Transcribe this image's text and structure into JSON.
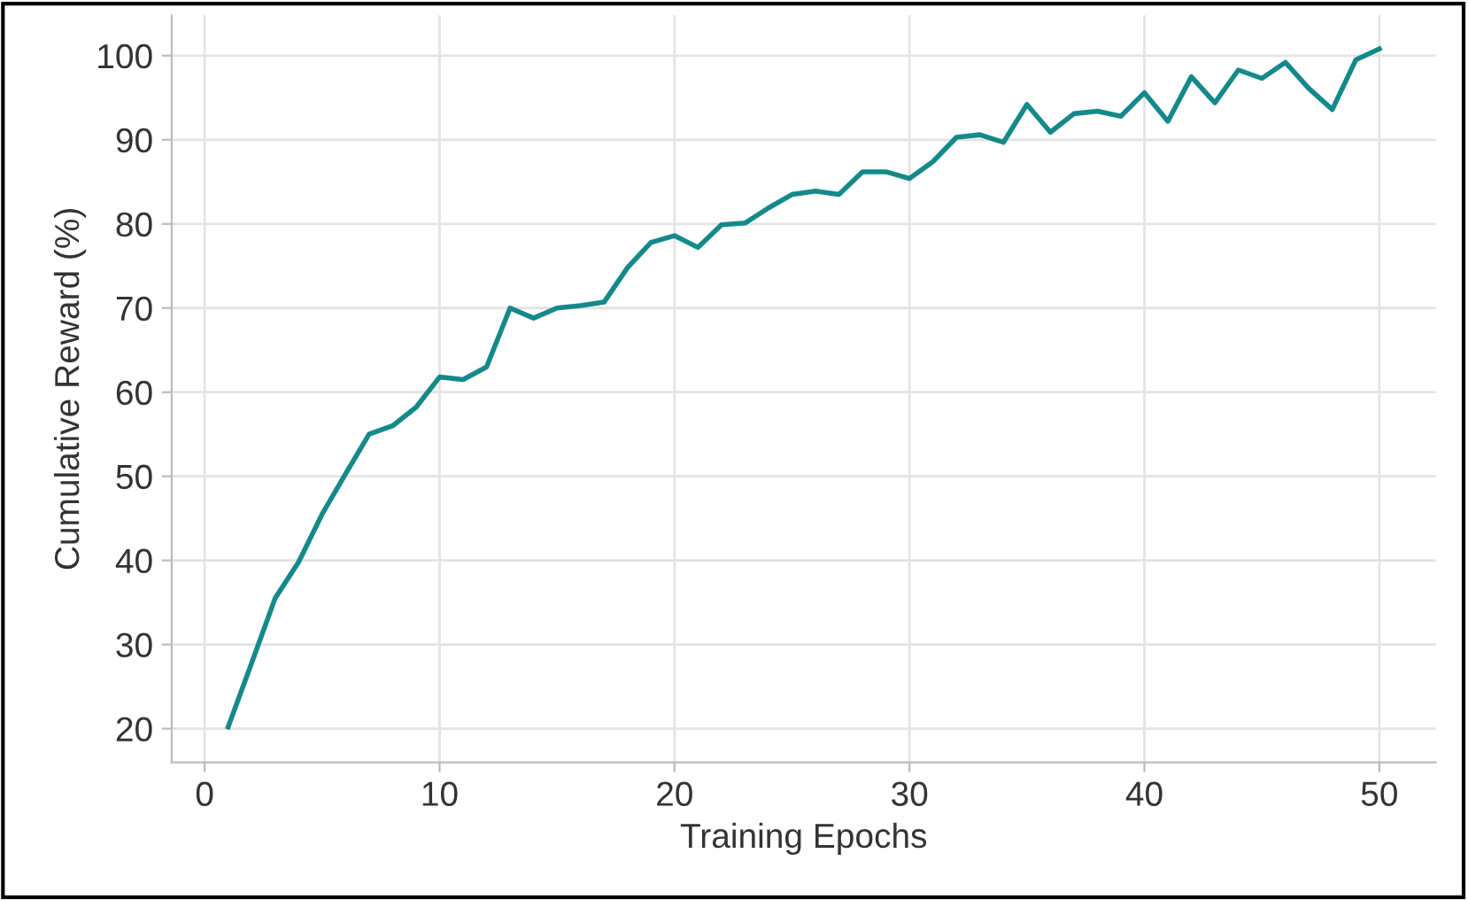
{
  "chart_data": {
    "type": "line",
    "xlabel": "Training Epochs",
    "ylabel": "Cumulative Reward (%)",
    "x": [
      1,
      2,
      3,
      4,
      5,
      6,
      7,
      8,
      9,
      10,
      11,
      12,
      13,
      14,
      15,
      16,
      17,
      18,
      19,
      20,
      21,
      22,
      23,
      24,
      25,
      26,
      27,
      28,
      29,
      30,
      31,
      32,
      33,
      34,
      35,
      36,
      37,
      38,
      39,
      40,
      41,
      42,
      43,
      44,
      45,
      46,
      47,
      48,
      49,
      50
    ],
    "series": [
      {
        "color": "#14898a",
        "values": [
          20.2,
          27.8,
          35.5,
          39.8,
          45.5,
          50.3,
          55,
          56,
          58.2,
          61.8,
          61.5,
          63,
          70,
          68.8,
          70,
          70.3,
          70.7,
          74.8,
          77.8,
          78.6,
          77.2,
          79.9,
          80.1,
          81.9,
          83.5,
          83.9,
          83.5,
          86.2,
          86.2,
          85.4,
          87.4,
          90.3,
          90.6,
          89.7,
          94.2,
          90.9,
          93.1,
          93.4,
          92.8,
          95.6,
          92.2,
          97.5,
          94.4,
          98.3,
          97.3,
          99.2,
          96.1,
          93.6,
          99.5,
          100.8
        ]
      }
    ],
    "xlim": [
      -1.4,
      52.4
    ],
    "ylim": [
      16,
      104.8
    ],
    "xticks": [
      0,
      10,
      20,
      30,
      40,
      50
    ],
    "yticks": [
      20,
      30,
      40,
      50,
      60,
      70,
      80,
      90,
      100
    ],
    "grid": true,
    "marker": "none",
    "line_style": "solid",
    "legend": false
  }
}
